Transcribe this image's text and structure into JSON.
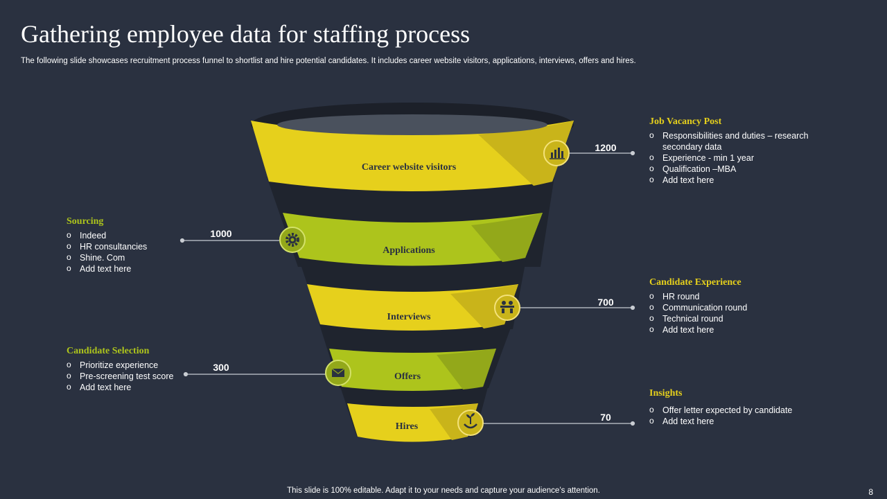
{
  "title": "Gathering employee data for staffing process",
  "subtitle": "The following slide showcases recruitment process funnel to shortlist and hire potential candidates. It includes career website visitors, applications, interviews, offers and hires.",
  "colors": {
    "background": "#2a3140",
    "yellow": "#e6d01c",
    "green": "#adc41c",
    "dark_shade": "#222732"
  },
  "funnel": {
    "stages": [
      {
        "label": "Career website visitors",
        "value": "1200",
        "icon": "chart-icon",
        "color": "yellow"
      },
      {
        "label": "Applications",
        "value": "1000",
        "icon": "gear-icon",
        "color": "green"
      },
      {
        "label": "Interviews",
        "value": "700",
        "icon": "meeting-icon",
        "color": "yellow"
      },
      {
        "label": "Offers",
        "value": "300",
        "icon": "envelope-icon",
        "color": "green"
      },
      {
        "label": "Hires",
        "value": "70",
        "icon": "growth-hands-icon",
        "color": "yellow"
      }
    ]
  },
  "blocks": {
    "job_vacancy": {
      "heading": "Job Vacancy Post",
      "items": [
        "Responsibilities and duties – research",
        "Experience -  min 1 year",
        "Qualification –MBA",
        "Add text here"
      ],
      "item0_cont": "secondary data"
    },
    "sourcing": {
      "heading": "Sourcing",
      "items": [
        "Indeed",
        "HR consultancies",
        "Shine. Com",
        "Add text here"
      ]
    },
    "candidate_experience": {
      "heading": "Candidate Experience",
      "items": [
        "HR round",
        "Communication round",
        "Technical round",
        "Add text here"
      ]
    },
    "candidate_selection": {
      "heading": "Candidate Selection",
      "items": [
        "Prioritize experience",
        "Pre-screening test score",
        "Add text here"
      ]
    },
    "insights": {
      "heading": "Insights",
      "items": [
        "Offer letter expected by candidate",
        "Add text here"
      ]
    }
  },
  "footer": "This slide is 100% editable. Adapt it to your needs and capture your audience’s attention.",
  "page_number": "8"
}
